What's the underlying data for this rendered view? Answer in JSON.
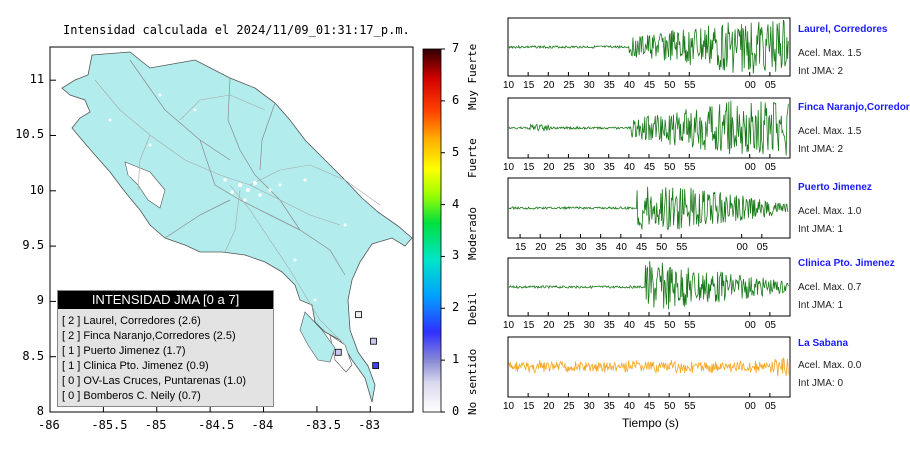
{
  "map": {
    "title": "Intensidad calculada el 2024/11/09_01:31:17_p.m.",
    "x_ticks": [
      "-86",
      "-85.5",
      "-85",
      "-84.5",
      "-84",
      "-83.5",
      "-83"
    ],
    "y_ticks": [
      "11",
      "10.5",
      "10",
      "9.5",
      "9",
      "8.5",
      "8"
    ],
    "colors": {
      "land": "#b2ecec",
      "border": "#8a8a8a",
      "sea": "#ffffff"
    }
  },
  "legend": {
    "header": "INTENSIDAD JMA [0 a 7]",
    "items": [
      "[ 2 ]  Laurel, Corredores (2.6)",
      "[ 2 ]  Finca Naranjo,Corredores (2.5)",
      "[ 1 ]  Puerto Jimenez (1.7)",
      "[ 1 ]  Clinica Pto. Jimenez (0.9)",
      "[ 0 ]  OV-Las Cruces, Puntarenas (1.0)",
      "[ 0 ]  Bomberos C. Neily (0.7)"
    ]
  },
  "colorbar": {
    "ticks": [
      "0",
      "1",
      "2",
      "3",
      "4",
      "5",
      "6",
      "7"
    ],
    "labels": [
      "No sentido",
      "Debil",
      "Moderado",
      "Fuerte",
      "Muy Fuerte"
    ]
  },
  "stations": [
    {
      "name": "Laurel, Corredores",
      "acel": "Acel. Max. 1.5",
      "int": "Int JMA: 2",
      "color": "#1a7a1a"
    },
    {
      "name": "Finca Naranjo,Corredores",
      "acel": "Acel. Max. 1.5",
      "int": "Int JMA: 2",
      "color": "#1a7a1a"
    },
    {
      "name": "Puerto Jimenez",
      "acel": "Acel. Max. 1.0",
      "int": "Int JMA: 1",
      "color": "#1a7a1a"
    },
    {
      "name": "Clinica Pto. Jimenez",
      "acel": "Acel. Max. 0.7",
      "int": "Int JMA: 1",
      "color": "#1a7a1a"
    },
    {
      "name": "La Sabana",
      "acel": "Acel. Max. 0.0",
      "int": "Int JMA: 0",
      "color": "#f5a623"
    }
  ],
  "time_axes": [
    [
      "10",
      "15",
      "20",
      "25",
      "30",
      "35",
      "40",
      "45",
      "50",
      "55",
      "00",
      "05"
    ],
    [
      "10",
      "15",
      "20",
      "25",
      "30",
      "35",
      "40",
      "45",
      "50",
      "55",
      "00",
      "05"
    ],
    [
      "15",
      "20",
      "25",
      "30",
      "35",
      "40",
      "45",
      "50",
      "55",
      "00",
      "05"
    ],
    [
      "10",
      "15",
      "20",
      "25",
      "30",
      "35",
      "40",
      "45",
      "50",
      "55",
      "00",
      "05"
    ],
    [
      "10",
      "15",
      "20",
      "25",
      "30",
      "35",
      "40",
      "45",
      "50",
      "55",
      "00",
      "05"
    ]
  ],
  "time_label": "Tiempo (s)",
  "chart_data": {
    "type": "map",
    "title": "Intensidad calculada el 2024/11/09_01:31:17_p.m.",
    "xlim": [
      -86,
      -82.6
    ],
    "ylim": [
      8,
      11.3
    ],
    "x_ticks": [
      -86,
      -85.5,
      -85,
      -84.5,
      -84,
      -83.5,
      -83
    ],
    "y_ticks": [
      8,
      8.5,
      9,
      9.5,
      10,
      10.5,
      11
    ],
    "colorbar_range": [
      0,
      7
    ],
    "station_markers": [
      {
        "lon": -82.95,
        "lat": 8.42,
        "intensity": 2
      },
      {
        "lon": -82.97,
        "lat": 8.64,
        "intensity": 1
      },
      {
        "lon": -83.3,
        "lat": 8.54,
        "intensity": 1
      },
      {
        "lon": -83.11,
        "lat": 8.88,
        "intensity": 0
      }
    ],
    "waveforms": [
      {
        "station": "Laurel, Corredores",
        "onset_s": 40,
        "peak_amp": 1.5
      },
      {
        "station": "Finca Naranjo,Corredores",
        "onset_s": 40,
        "peak_amp": 1.5
      },
      {
        "station": "Puerto Jimenez",
        "onset_s": 44,
        "peak_amp": 1.0
      },
      {
        "station": "Clinica Pto. Jimenez",
        "onset_s": 44,
        "peak_amp": 0.7
      },
      {
        "station": "La Sabana",
        "onset_s": 10,
        "peak_amp": 0.0
      }
    ]
  }
}
